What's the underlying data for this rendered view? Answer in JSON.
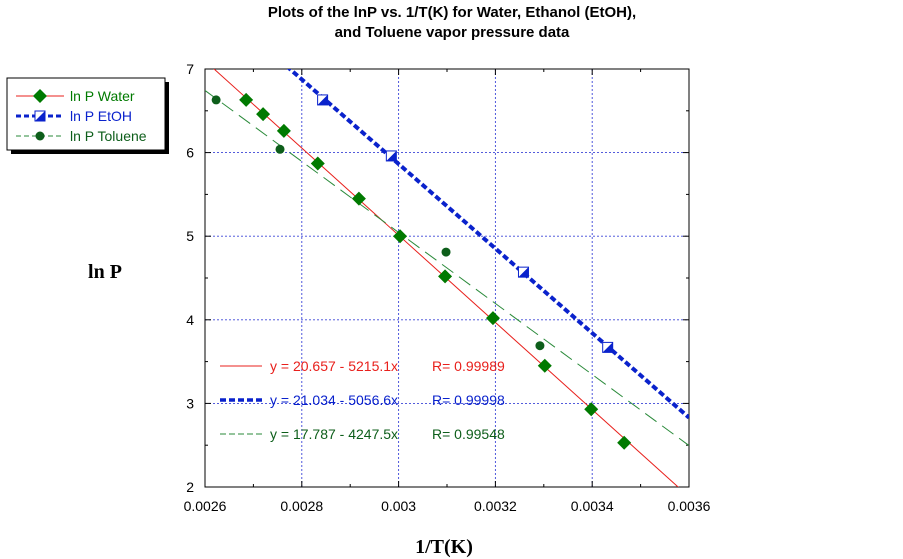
{
  "chart_data": {
    "type": "scatter",
    "title_line1": "Plots of the lnP vs. 1/T(K) for Water, Ethanol (EtOH),",
    "title_line2": "and Toluene vapor pressure data",
    "xlabel": "1/T(K)",
    "ylabel": "ln P",
    "xlim": [
      0.0026,
      0.0036
    ],
    "ylim": [
      2,
      7
    ],
    "xticks": [
      0.0026,
      0.0028,
      0.003,
      0.0032,
      0.0034,
      0.0036
    ],
    "xtick_labels": [
      "0.0026",
      "0.0028",
      "0.003",
      "0.0032",
      "0.0034",
      "0.0036"
    ],
    "yticks": [
      2,
      3,
      4,
      5,
      6,
      7
    ],
    "ytick_labels": [
      "2",
      "3",
      "4",
      "5",
      "6",
      "7"
    ],
    "grid": true,
    "legend_position": "top-left outside",
    "series": [
      {
        "name": "ln P Water",
        "color": "#007a00",
        "line_color": "#e8201c",
        "line_style": "solid",
        "marker": "diamond",
        "x": [
          0.002685,
          0.00272,
          0.002763,
          0.002833,
          0.002918,
          0.003003,
          0.003096,
          0.003195,
          0.003302,
          0.003398,
          0.003466
        ],
        "y": [
          6.63,
          6.46,
          6.26,
          5.87,
          5.45,
          5.0,
          4.52,
          4.02,
          3.45,
          2.93,
          2.53
        ],
        "fit": {
          "intercept": 20.657,
          "slope": -5215.1
        },
        "equation": "y = 20.657 - 5215.1x",
        "r_value": "R= 0.99989"
      },
      {
        "name": "ln P EtOH",
        "color": "#0a22cc",
        "line_color": "#0a22cc",
        "line_style": "dotted-thick",
        "marker": "half-square",
        "x": [
          0.002843,
          0.002985,
          0.003258,
          0.003432
        ],
        "y": [
          6.63,
          5.96,
          4.57,
          3.67
        ],
        "fit": {
          "intercept": 21.034,
          "slope": -5056.6
        },
        "equation": "y = 21.034 - 5056.6x",
        "r_value": "R= 0.99998"
      },
      {
        "name": "ln P Toluene",
        "color": "#0d5e1a",
        "line_color": "#2a8a3a",
        "line_style": "dashed",
        "marker": "circle",
        "x": [
          0.002623,
          0.002755,
          0.003098,
          0.003292
        ],
        "y": [
          6.63,
          6.04,
          4.81,
          3.69
        ],
        "fit": {
          "intercept": 17.787,
          "slope": -4247.5
        },
        "equation": "y = 17.787 - 4247.5x",
        "r_value": "R= 0.99548"
      }
    ]
  }
}
